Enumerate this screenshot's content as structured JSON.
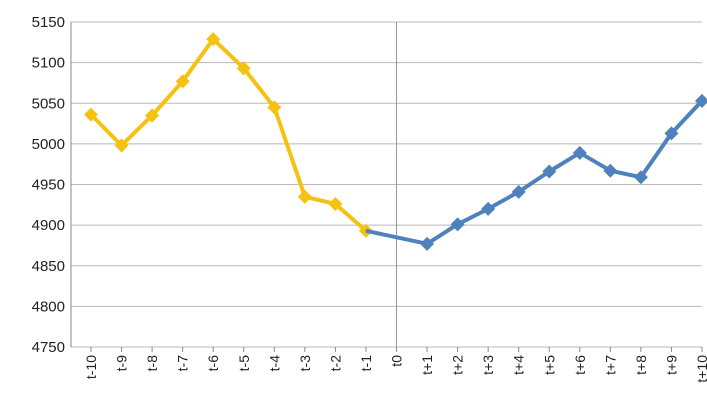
{
  "chart_data": {
    "type": "line",
    "title": "",
    "xlabel": "",
    "ylabel": "",
    "ylim": [
      4750,
      5150
    ],
    "yticks": [
      4750,
      4800,
      4850,
      4900,
      4950,
      5000,
      5050,
      5100,
      5150
    ],
    "grid": true,
    "categories": [
      "t-10",
      "t-9",
      "t-8",
      "t-7",
      "t-6",
      "t-5",
      "t-4",
      "t-3",
      "t-2",
      "t-1",
      "t0",
      "t+1",
      "t+2",
      "t+3",
      "t+4",
      "t+5",
      "t+6",
      "t+7",
      "t+8",
      "t+9",
      "t+10"
    ],
    "event_marker": "t0",
    "series": [
      {
        "color": "#F5C211",
        "x": [
          "t-10",
          "t-9",
          "t-8",
          "t-7",
          "t-6",
          "t-5",
          "t-4",
          "t-3",
          "t-2",
          "t-1"
        ],
        "values": [
          5036,
          4998,
          5035,
          5077,
          5129,
          5093,
          5045,
          4935,
          4926,
          4893
        ]
      },
      {
        "color": "#4F81BD",
        "x": [
          "t-1",
          "t+1",
          "t+2",
          "t+3",
          "t+4",
          "t+5",
          "t+6",
          "t+7",
          "t+8",
          "t+9",
          "t+10"
        ],
        "values": [
          4893,
          4877,
          4901,
          4920,
          4941,
          4966,
          4989,
          4967,
          4959,
          5013,
          5053
        ]
      }
    ]
  }
}
